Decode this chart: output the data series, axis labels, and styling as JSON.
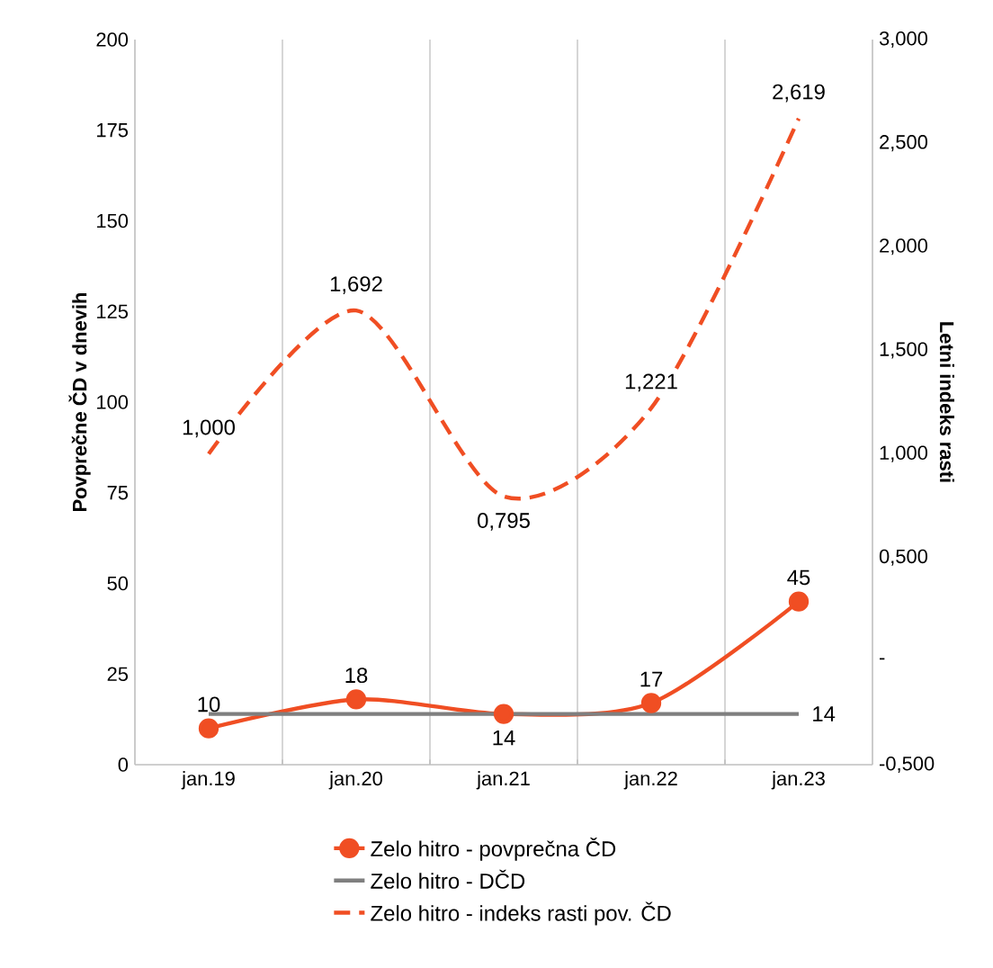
{
  "chart_data": {
    "type": "line",
    "categories": [
      "jan.19",
      "jan.20",
      "jan.21",
      "jan.22",
      "jan.23"
    ],
    "ylabel": "Povprečne ČD v dnevih",
    "y2label": "Letni indeks rasti",
    "ylim": [
      0,
      200
    ],
    "yticks": [
      0,
      25,
      50,
      75,
      100,
      125,
      150,
      175,
      200
    ],
    "y2lim": [
      -0.5,
      3.0
    ],
    "y2ticks": [
      {
        "value": -0.5,
        "label": "-0,500"
      },
      {
        "value": 0,
        "label": "-"
      },
      {
        "value": 0.5,
        "label": "0,500"
      },
      {
        "value": 1.0,
        "label": "1,000"
      },
      {
        "value": 1.5,
        "label": "1,500"
      },
      {
        "value": 2.0,
        "label": "2,000"
      },
      {
        "value": 2.5,
        "label": "2,500"
      },
      {
        "value": 3.0,
        "label": "3,000"
      }
    ],
    "grid": "x",
    "legend": "bottom",
    "series": [
      {
        "name": "Zelo hitro - povprečna ČD",
        "color": "#f04e23",
        "values": [
          10,
          18,
          14,
          17,
          45
        ],
        "value_labels": [
          "10",
          "18",
          "14",
          "17",
          "45"
        ],
        "marker": "circle",
        "line_style": "solid"
      },
      {
        "name": "Zelo hitro - DČD",
        "color": "#7f7f7f",
        "values": [
          14,
          14,
          14,
          14,
          14
        ],
        "value_labels": [
          null,
          null,
          null,
          null,
          "14"
        ],
        "marker": "none",
        "line_style": "solid"
      },
      {
        "name": "Zelo hitro - indeks rasti pov. ČD",
        "color": "#f04e23",
        "values": [
          1.0,
          1.692,
          0.795,
          1.221,
          2.619
        ],
        "value_labels": [
          "1,000",
          "1,692",
          "0,795",
          "1,221",
          "2,619"
        ],
        "axis": "y2",
        "marker": "none",
        "line_style": "dashed"
      }
    ]
  }
}
